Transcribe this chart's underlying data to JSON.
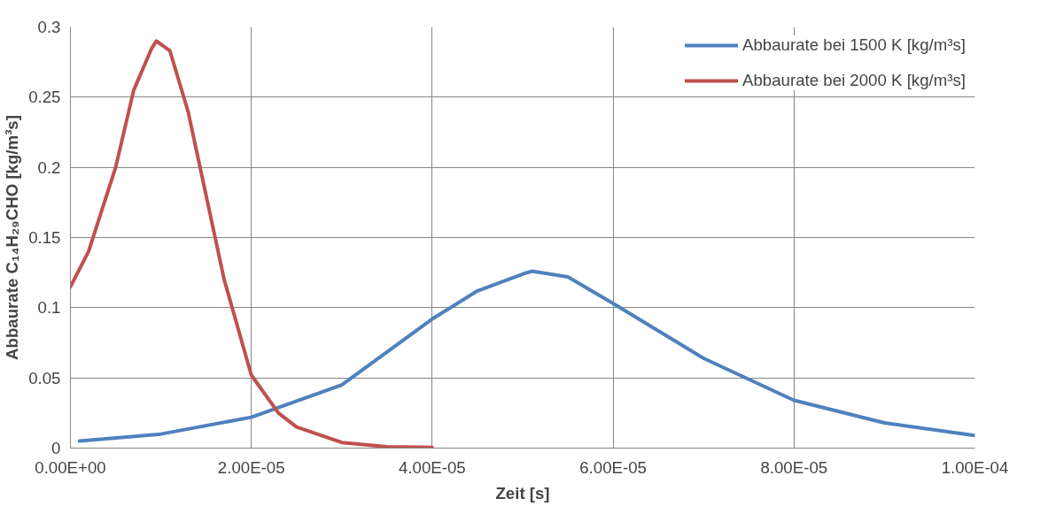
{
  "chart_data": {
    "type": "line",
    "xlabel": "Zeit [s]",
    "ylabel": "Abbaurate C₁₄H₂₉CHO [kg/m³s]",
    "xlim": [
      0,
      0.0001
    ],
    "ylim": [
      0,
      0.3
    ],
    "xticks": [
      {
        "value": 0,
        "label": "0.00E+00"
      },
      {
        "value": 2e-05,
        "label": "2.00E-05"
      },
      {
        "value": 4e-05,
        "label": "4.00E-05"
      },
      {
        "value": 6e-05,
        "label": "6.00E-05"
      },
      {
        "value": 8e-05,
        "label": "8.00E-05"
      },
      {
        "value": 0.0001,
        "label": "1.00E-04"
      }
    ],
    "yticks": [
      0,
      0.05,
      0.1,
      0.15,
      0.2,
      0.25,
      0.3
    ],
    "grid": true,
    "legend": "top right",
    "marker": "none",
    "line_style": "solid",
    "series": [
      {
        "name": "Abbaurate bei 1500 K [kg/m³s]",
        "color": "#4f81bd",
        "x": [
          1e-06,
          1e-05,
          2e-05,
          3e-05,
          4e-05,
          4.5e-05,
          5e-05,
          5.1e-05,
          5.5e-05,
          6e-05,
          7e-05,
          8e-05,
          9e-05,
          0.0001
        ],
        "values": [
          0.005,
          0.01,
          0.022,
          0.045,
          0.092,
          0.112,
          0.124,
          0.126,
          0.122,
          0.103,
          0.064,
          0.034,
          0.018,
          0.009
        ]
      },
      {
        "name": "Abbaurate bei 2000 K [kg/m³s]",
        "color": "#c0504d",
        "x": [
          0,
          2e-06,
          5e-06,
          7e-06,
          9e-06,
          9.5e-06,
          1.1e-05,
          1.3e-05,
          1.5e-05,
          1.7e-05,
          2e-05,
          2.3e-05,
          2.5e-05,
          3e-05,
          3.5e-05,
          4e-05
        ],
        "values": [
          0.115,
          0.14,
          0.2,
          0.255,
          0.285,
          0.29,
          0.283,
          0.24,
          0.18,
          0.12,
          0.052,
          0.025,
          0.015,
          0.004,
          0.001,
          0.0005
        ]
      }
    ]
  }
}
